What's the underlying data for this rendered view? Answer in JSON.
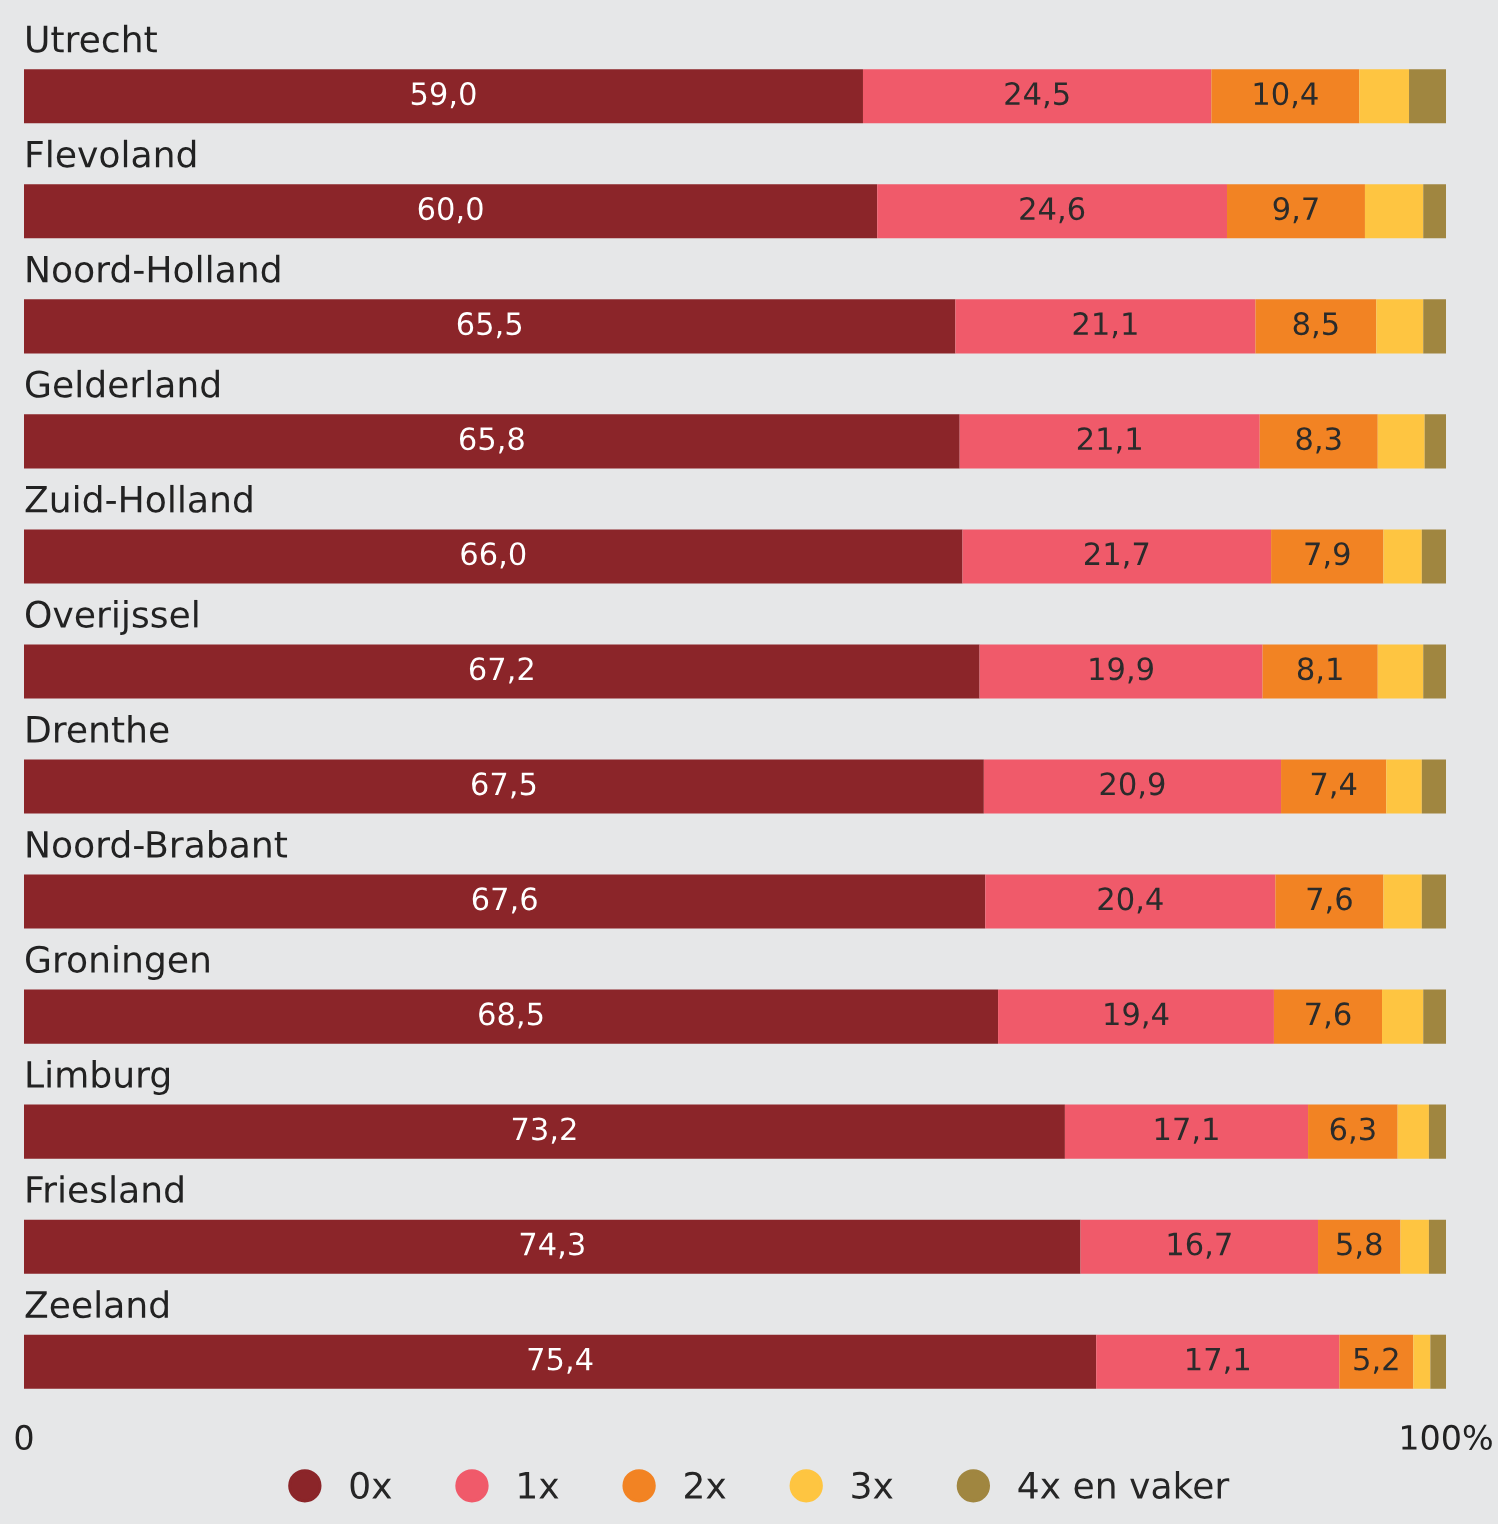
{
  "chart_data": {
    "type": "bar",
    "orientation": "horizontal",
    "stacked": true,
    "categories": [
      "Utrecht",
      "Flevoland",
      "Noord-Holland",
      "Gelderland",
      "Zuid-Holland",
      "Overijssel",
      "Drenthe",
      "Noord-Brabant",
      "Groningen",
      "Limburg",
      "Friesland",
      "Zeeland"
    ],
    "series": [
      {
        "name": "0x",
        "color": "#8b2529",
        "values": [
          59.0,
          60.0,
          65.5,
          65.8,
          66.0,
          67.2,
          67.5,
          67.6,
          68.5,
          73.2,
          74.3,
          75.4
        ],
        "value_labels": [
          "59,0",
          "60,0",
          "65,5",
          "65,8",
          "66,0",
          "67,2",
          "67,5",
          "67,6",
          "68,5",
          "73,2",
          "74,3",
          "75,4"
        ]
      },
      {
        "name": "1x",
        "color": "#f05a6a",
        "values": [
          24.5,
          24.6,
          21.1,
          21.1,
          21.7,
          19.9,
          20.9,
          20.4,
          19.4,
          17.1,
          16.7,
          17.1
        ],
        "value_labels": [
          "24,5",
          "24,6",
          "21,1",
          "21,1",
          "21,7",
          "19,9",
          "20,9",
          "20,4",
          "19,4",
          "17,1",
          "16,7",
          "17,1"
        ]
      },
      {
        "name": "2x",
        "color": "#f28323",
        "values": [
          10.4,
          9.7,
          8.5,
          8.3,
          7.9,
          8.1,
          7.4,
          7.6,
          7.6,
          6.3,
          5.8,
          5.2
        ],
        "value_labels": [
          "10,4",
          "9,7",
          "8,5",
          "8,3",
          "7,9",
          "8,1",
          "7,4",
          "7,6",
          "7,6",
          "6,3",
          "5,8",
          "5,2"
        ]
      },
      {
        "name": "3x",
        "color": "#fec541",
        "values": [
          3.5,
          4.1,
          3.3,
          3.3,
          2.7,
          3.2,
          2.5,
          2.7,
          2.9,
          2.2,
          2.0,
          1.2
        ]
      },
      {
        "name": "4x en vaker",
        "color": "#a08640",
        "values": [
          2.6,
          1.6,
          1.6,
          1.5,
          1.7,
          1.6,
          1.7,
          1.7,
          1.6,
          1.2,
          1.2,
          1.1
        ]
      }
    ],
    "xlim": [
      0,
      100
    ],
    "xticks": [
      0,
      {
        "value": 100,
        "label": "100%"
      }
    ],
    "legend": "bottom",
    "marker": "circle",
    "grid": false
  }
}
